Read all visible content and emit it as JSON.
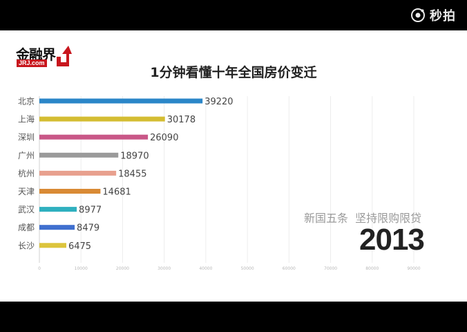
{
  "watermark": {
    "label": "秒拍",
    "icon": "miaopai-logo-icon"
  },
  "logo": {
    "main": "金融界",
    "sub": "JRJ.com"
  },
  "chart_data": {
    "type": "bar",
    "orientation": "horizontal",
    "title": "1分钟看懂十年全国房价变迁",
    "categories": [
      "北京",
      "上海",
      "深圳",
      "广州",
      "杭州",
      "天津",
      "武汉",
      "成都",
      "长沙"
    ],
    "values": [
      39220,
      30178,
      26090,
      18970,
      18455,
      14681,
      8977,
      8479,
      6475
    ],
    "value_labels": [
      "39220",
      "30178",
      "26090",
      "18970",
      "18455",
      "14681",
      "8977",
      "8479",
      "6475"
    ],
    "colors": [
      "#2b86c8",
      "#d4bd32",
      "#c95787",
      "#9a9a9a",
      "#e8a08e",
      "#d98a35",
      "#2fb0bf",
      "#3f6fcf",
      "#dcc43c"
    ],
    "xlim": [
      0,
      90000
    ],
    "xticks": [
      0,
      10000,
      20000,
      30000,
      40000,
      50000,
      60000,
      70000,
      80000,
      90000
    ],
    "xtick_labels": [
      "0",
      "10000",
      "20000",
      "30000",
      "40000",
      "50000",
      "60000",
      "70000",
      "80000",
      "90000"
    ],
    "grid": true,
    "legend": "none"
  },
  "annotation": "新国五条  坚持限购限贷",
  "year": "2013"
}
